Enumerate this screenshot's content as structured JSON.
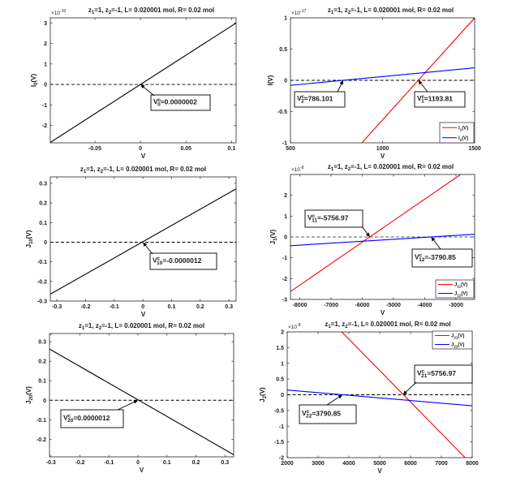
{
  "chart_data": [
    {
      "type": "line",
      "title": [
        {
          "t": "z"
        },
        {
          "sub": "1"
        },
        {
          "t": "=1, z"
        },
        {
          "sub": "2"
        },
        {
          "t": "=-1, L= 0.020001 mol, R= 0.02 mol"
        }
      ],
      "exponent": {
        "base": "×10",
        "power": "-10"
      },
      "xlabel": "V",
      "ylabel": [
        {
          "t": "I"
        },
        {
          "sub": "0"
        },
        {
          "t": "(V)"
        }
      ],
      "xlim": [
        -0.099,
        0.105
      ],
      "ylim": [
        -2.85,
        3.25
      ],
      "xticks": [
        {
          "v": -0.05,
          "label": "-0.05"
        },
        {
          "v": 0,
          "label": "0"
        },
        {
          "v": 0.05,
          "label": "0.05"
        },
        {
          "v": 0.1,
          "label": "0.1"
        }
      ],
      "yticks": [
        {
          "v": -2,
          "label": "-2"
        },
        {
          "v": -1,
          "label": "-1"
        },
        {
          "v": 0,
          "label": "0"
        },
        {
          "v": 1,
          "label": "1"
        },
        {
          "v": 2,
          "label": "2"
        },
        {
          "v": 3,
          "label": "3"
        }
      ],
      "zero_line": true,
      "series": [
        {
          "name": "I0(V)",
          "color": "#000000",
          "x": [
            -0.099,
            0.105
          ],
          "y": [
            -2.83,
            3.0
          ]
        }
      ],
      "legend": null,
      "annotations": [
        {
          "text": [
            {
              "t": "V"
            },
            {
              "sup": "c"
            },
            {
              "sub": "0"
            },
            {
              "t": "=0.0000002"
            }
          ],
          "x": 2e-07,
          "y": 0
        }
      ]
    },
    {
      "type": "line",
      "title": [
        {
          "t": "z"
        },
        {
          "sub": "1"
        },
        {
          "t": "=1, z"
        },
        {
          "sub": "2"
        },
        {
          "t": "=-1, L= 0.020001 mol, R= 0.02 mol"
        }
      ],
      "exponent": {
        "base": "×10",
        "power": "-17"
      },
      "xlabel": "V",
      "ylabel": [
        {
          "t": "I(V)"
        }
      ],
      "xlim": [
        500,
        1500
      ],
      "ylim": [
        -1,
        1
      ],
      "xticks": [
        {
          "v": 500,
          "label": "500"
        },
        {
          "v": 1000,
          "label": "1000"
        },
        {
          "v": 1500,
          "label": "1500"
        }
      ],
      "yticks": [
        {
          "v": -1,
          "label": "-1"
        },
        {
          "v": -0.5,
          "label": "-0.5"
        },
        {
          "v": 0,
          "label": "0"
        },
        {
          "v": 0.5,
          "label": "0.5"
        },
        {
          "v": 1,
          "label": "1"
        }
      ],
      "zero_line": true,
      "series": [
        {
          "name": "I1(V)",
          "color": "#ff0000",
          "x": [
            887.6,
            1500
          ],
          "y": [
            -1,
            1
          ]
        },
        {
          "name": "I2(V)",
          "color": "#0000ff",
          "x": [
            500,
            1500
          ],
          "y": [
            -0.08,
            0.2
          ]
        }
      ],
      "legend": {
        "position": "bottom-right",
        "entries": [
          [
            {
              "t": "I"
            },
            {
              "sub": "1"
            },
            {
              "t": "(V)"
            }
          ],
          [
            {
              "t": "I"
            },
            {
              "sub": "2"
            },
            {
              "t": "(V)"
            }
          ]
        ]
      },
      "annotations": [
        {
          "text": [
            {
              "t": "V"
            },
            {
              "sup": "c"
            },
            {
              "sub": "2"
            },
            {
              "t": "=786.101"
            }
          ],
          "x": 786.101,
          "y": 0
        },
        {
          "text": [
            {
              "t": "V"
            },
            {
              "sup": "c"
            },
            {
              "sub": "1"
            },
            {
              "t": "=1193.81"
            }
          ],
          "x": 1193.81,
          "y": 0
        }
      ]
    },
    {
      "type": "line",
      "title": [
        {
          "t": "z"
        },
        {
          "sub": "1"
        },
        {
          "t": "=1, z"
        },
        {
          "sub": "2"
        },
        {
          "t": "=-1, L= 0.020001 mol, R= 0.02 mol"
        }
      ],
      "exponent": null,
      "xlabel": "V",
      "ylabel": [
        {
          "t": "J"
        },
        {
          "sub": "10"
        },
        {
          "t": "(V)"
        }
      ],
      "xlim": [
        -0.323,
        0.325
      ],
      "ylim": [
        -0.3,
        0.333
      ],
      "xticks": [
        {
          "v": -0.3,
          "label": "-0.3"
        },
        {
          "v": -0.2,
          "label": "-0.2"
        },
        {
          "v": -0.1,
          "label": "-0.1"
        },
        {
          "v": 0,
          "label": "0"
        },
        {
          "v": 0.1,
          "label": "0.1"
        },
        {
          "v": 0.2,
          "label": "0.2"
        },
        {
          "v": 0.3,
          "label": "0.3"
        }
      ],
      "yticks": [
        {
          "v": -0.3,
          "label": "-0.3"
        },
        {
          "v": -0.2,
          "label": "-0.2"
        },
        {
          "v": -0.1,
          "label": "-0.1"
        },
        {
          "v": 0,
          "label": "0"
        },
        {
          "v": 0.1,
          "label": "0.1"
        },
        {
          "v": 0.2,
          "label": "0.2"
        },
        {
          "v": 0.3,
          "label": "0.3"
        }
      ],
      "zero_line": true,
      "series": [
        {
          "name": "J10(V)",
          "color": "#000000",
          "x": [
            -0.323,
            0.325
          ],
          "y": [
            -0.265,
            0.272
          ]
        }
      ],
      "legend": null,
      "annotations": [
        {
          "text": [
            {
              "t": "V"
            },
            {
              "sup": "c"
            },
            {
              "sub": "10"
            },
            {
              "t": "=-0.0000012"
            }
          ],
          "x": -1.2e-06,
          "y": 0
        }
      ]
    },
    {
      "type": "line",
      "title": [
        {
          "t": "z"
        },
        {
          "sub": "1"
        },
        {
          "t": "=1, z"
        },
        {
          "sub": "2"
        },
        {
          "t": "=-1, L= 0.020001 mol, R= 0.02 mol"
        }
      ],
      "exponent": {
        "base": "×10",
        "power": "-8"
      },
      "xlabel": "V",
      "ylabel": [
        {
          "t": "J"
        },
        {
          "sub": "1"
        },
        {
          "t": "(V)"
        }
      ],
      "xlim": [
        -8300,
        -2400
      ],
      "ylim": [
        -3,
        3
      ],
      "xticks": [
        {
          "v": -8000,
          "label": "-8000"
        },
        {
          "v": -7000,
          "label": "-7000"
        },
        {
          "v": -6000,
          "label": "-6000"
        },
        {
          "v": -5000,
          "label": "-5000"
        },
        {
          "v": -4000,
          "label": "-4000"
        },
        {
          "v": -3000,
          "label": "-3000"
        }
      ],
      "yticks": [
        {
          "v": -3,
          "label": "-3"
        },
        {
          "v": -2,
          "label": "-2"
        },
        {
          "v": -1,
          "label": "-1"
        },
        {
          "v": 0,
          "label": "0"
        },
        {
          "v": 1,
          "label": "1"
        },
        {
          "v": 2,
          "label": "2"
        }
      ],
      "zero_line": true,
      "series": [
        {
          "name": "J11(V)",
          "color": "#ff0000",
          "x": [
            -8300,
            -2850
          ],
          "y": [
            -2.62,
            3
          ]
        },
        {
          "name": "J12(V)",
          "color": "#0000ff",
          "x": [
            -8300,
            -2400
          ],
          "y": [
            -0.42,
            0.13
          ]
        }
      ],
      "legend": {
        "position": "bottom-right",
        "entries": [
          [
            {
              "t": "J"
            },
            {
              "sub": "11"
            },
            {
              "t": "(V)"
            }
          ],
          [
            {
              "t": "J"
            },
            {
              "sub": "12"
            },
            {
              "t": "(V)"
            }
          ]
        ]
      },
      "annotations": [
        {
          "text": [
            {
              "t": "V"
            },
            {
              "sup": "c"
            },
            {
              "sub": "11"
            },
            {
              "t": "=-5756.97"
            }
          ],
          "x": -5756.97,
          "y": 0
        },
        {
          "text": [
            {
              "t": "V"
            },
            {
              "sup": "c"
            },
            {
              "sub": "12"
            },
            {
              "t": "=-3790.85"
            }
          ],
          "x": -3790.85,
          "y": 0
        }
      ]
    },
    {
      "type": "line",
      "title": [
        {
          "t": "z"
        },
        {
          "sub": "1"
        },
        {
          "t": "=1, z"
        },
        {
          "sub": "2"
        },
        {
          "t": "=-1, L= 0.020001 mol, R= 0.02 mol"
        }
      ],
      "exponent": null,
      "xlabel": "V",
      "ylabel": [
        {
          "t": "J"
        },
        {
          "sub": "20"
        },
        {
          "t": "(V)"
        }
      ],
      "xlim": [
        -0.305,
        0.33
      ],
      "ylim": [
        -0.29,
        0.342
      ],
      "xticks": [
        {
          "v": -0.3,
          "label": "-0.3"
        },
        {
          "v": -0.2,
          "label": "-0.2"
        },
        {
          "v": -0.1,
          "label": "-0.1"
        },
        {
          "v": 0,
          "label": "0"
        },
        {
          "v": 0.1,
          "label": "0.1"
        },
        {
          "v": 0.2,
          "label": "0.2"
        },
        {
          "v": 0.3,
          "label": "0.3"
        }
      ],
      "yticks": [
        {
          "v": -0.2,
          "label": "-0.2"
        },
        {
          "v": -0.1,
          "label": "-0.1"
        },
        {
          "v": 0,
          "label": "0"
        },
        {
          "v": 0.1,
          "label": "0.1"
        },
        {
          "v": 0.2,
          "label": "0.2"
        },
        {
          "v": 0.3,
          "label": "0.3"
        }
      ],
      "zero_line": true,
      "series": [
        {
          "name": "J20(V)",
          "color": "#000000",
          "x": [
            -0.305,
            0.33
          ],
          "y": [
            0.2625,
            -0.279
          ]
        }
      ],
      "legend": null,
      "annotations": [
        {
          "text": [
            {
              "t": "V"
            },
            {
              "sup": "c"
            },
            {
              "sub": "20"
            },
            {
              "t": "=0.0000012"
            }
          ],
          "x": 1.2e-06,
          "y": 0
        }
      ]
    },
    {
      "type": "line",
      "title": [
        {
          "t": "z"
        },
        {
          "sub": "1"
        },
        {
          "t": "=1, z"
        },
        {
          "sub": "2"
        },
        {
          "t": "=-1, L= 0.020001 mol, R= 0.02 mol"
        }
      ],
      "exponent": {
        "base": "×10",
        "power": "-8"
      },
      "xlabel": "V",
      "ylabel": [
        {
          "t": "J"
        },
        {
          "sub": "2"
        },
        {
          "t": "(V)"
        }
      ],
      "xlim": [
        2000,
        8000
      ],
      "ylim": [
        -2,
        2
      ],
      "xticks": [
        {
          "v": 2000,
          "label": "2000"
        },
        {
          "v": 3000,
          "label": "3000"
        },
        {
          "v": 4000,
          "label": "4000"
        },
        {
          "v": 5000,
          "label": "5000"
        },
        {
          "v": 6000,
          "label": "6000"
        },
        {
          "v": 7000,
          "label": "7000"
        },
        {
          "v": 8000,
          "label": "8000"
        }
      ],
      "yticks": [
        {
          "v": -2,
          "label": "-2"
        },
        {
          "v": -1.5,
          "label": "-1.5"
        },
        {
          "v": -1,
          "label": "-1"
        },
        {
          "v": -0.5,
          "label": "-0.5"
        },
        {
          "v": 0,
          "label": "0"
        },
        {
          "v": 0.5,
          "label": "0.5"
        },
        {
          "v": 1,
          "label": "1"
        },
        {
          "v": 1.5,
          "label": "1.5"
        },
        {
          "v": 2,
          "label": "2"
        }
      ],
      "zero_line": true,
      "series": [
        {
          "name": "J21(V)",
          "color": "#ff0000",
          "x": [
            3770,
            7770
          ],
          "y": [
            2,
            -2
          ]
        },
        {
          "name": "J22(V)",
          "color": "#0000ff",
          "x": [
            2000,
            8000
          ],
          "y": [
            0.15,
            -0.35
          ]
        }
      ],
      "legend": {
        "position": "top-right",
        "entries": [
          [
            {
              "t": "J"
            },
            {
              "sub": "21"
            },
            {
              "t": "(V)"
            }
          ],
          [
            {
              "t": "J"
            },
            {
              "sub": "22"
            },
            {
              "t": "(V)"
            }
          ]
        ]
      },
      "annotations": [
        {
          "text": [
            {
              "t": "V"
            },
            {
              "sup": "c"
            },
            {
              "sub": "21"
            },
            {
              "t": "=5756.97"
            }
          ],
          "x": 5756.97,
          "y": 0
        },
        {
          "text": [
            {
              "t": "V"
            },
            {
              "sup": "c"
            },
            {
              "sub": "22"
            },
            {
              "t": "=3790.85"
            }
          ],
          "x": 3790.85,
          "y": 0
        }
      ]
    }
  ]
}
